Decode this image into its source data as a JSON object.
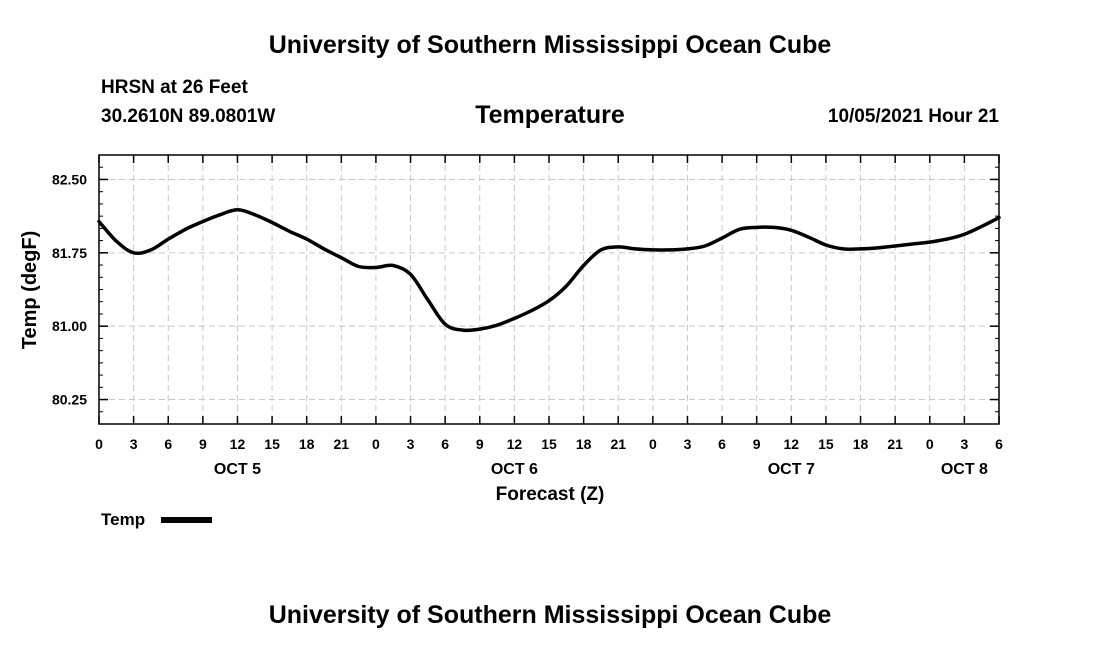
{
  "title_top": "University of Southern Mississippi Ocean Cube",
  "title_bottom": "University of Southern Mississippi Ocean Cube",
  "station": "HRSN at 26 Feet",
  "coords": "30.2610N  89.0801W",
  "timestamp": "10/05/2021 Hour 21",
  "chart_data": {
    "type": "line",
    "title": "Temperature",
    "xlabel": "Forecast (Z)",
    "ylabel": "Temp (degF)",
    "ylim": [
      80.0,
      82.75
    ],
    "xlim": [
      0,
      78
    ],
    "grid": true,
    "y_ticks": [
      {
        "value": 80.25,
        "label": "80.25"
      },
      {
        "value": 81.0,
        "label": "81.00"
      },
      {
        "value": 81.75,
        "label": "81.75"
      },
      {
        "value": 82.5,
        "label": "82.50"
      }
    ],
    "x_ticks": [
      {
        "hour": 0,
        "label": "0"
      },
      {
        "hour": 3,
        "label": "3"
      },
      {
        "hour": 6,
        "label": "6"
      },
      {
        "hour": 9,
        "label": "9"
      },
      {
        "hour": 12,
        "label": "12"
      },
      {
        "hour": 15,
        "label": "15"
      },
      {
        "hour": 18,
        "label": "18"
      },
      {
        "hour": 21,
        "label": "21"
      },
      {
        "hour": 24,
        "label": "0"
      },
      {
        "hour": 27,
        "label": "3"
      },
      {
        "hour": 30,
        "label": "6"
      },
      {
        "hour": 33,
        "label": "9"
      },
      {
        "hour": 36,
        "label": "12"
      },
      {
        "hour": 39,
        "label": "15"
      },
      {
        "hour": 42,
        "label": "18"
      },
      {
        "hour": 45,
        "label": "21"
      },
      {
        "hour": 48,
        "label": "0"
      },
      {
        "hour": 51,
        "label": "3"
      },
      {
        "hour": 54,
        "label": "6"
      },
      {
        "hour": 57,
        "label": "9"
      },
      {
        "hour": 60,
        "label": "12"
      },
      {
        "hour": 63,
        "label": "15"
      },
      {
        "hour": 66,
        "label": "18"
      },
      {
        "hour": 69,
        "label": "21"
      },
      {
        "hour": 72,
        "label": "0"
      },
      {
        "hour": 75,
        "label": "3"
      },
      {
        "hour": 78,
        "label": "6"
      }
    ],
    "day_labels": [
      {
        "hour": 12,
        "label": "OCT 5"
      },
      {
        "hour": 36,
        "label": "OCT 6"
      },
      {
        "hour": 60,
        "label": "OCT 7"
      },
      {
        "hour": 75,
        "label": "OCT 8"
      }
    ],
    "legend": [
      {
        "name": "Temp",
        "color": "#000000"
      }
    ],
    "series": [
      {
        "name": "Temp",
        "x": [
          0,
          1.5,
          3,
          4.5,
          6,
          7.5,
          9,
          10.5,
          12,
          13.5,
          15,
          16.5,
          18,
          19.5,
          21,
          22.5,
          24,
          25.5,
          27,
          28.5,
          30,
          31.5,
          33,
          34.5,
          36,
          37.5,
          39,
          40.5,
          42,
          43.5,
          45,
          46.5,
          48,
          49.5,
          51,
          52.5,
          54,
          55.5,
          57,
          58.5,
          60,
          61.5,
          63,
          64.5,
          66,
          67.5,
          69,
          70.5,
          72,
          73.5,
          75,
          76.5,
          78
        ],
        "values": [
          82.07,
          81.87,
          81.75,
          81.78,
          81.89,
          81.99,
          82.07,
          82.14,
          82.19,
          82.14,
          82.06,
          81.97,
          81.89,
          81.79,
          81.7,
          81.61,
          81.6,
          81.62,
          81.53,
          81.27,
          81.02,
          80.96,
          80.97,
          81.01,
          81.08,
          81.16,
          81.26,
          81.41,
          81.62,
          81.78,
          81.81,
          81.79,
          81.78,
          81.78,
          81.79,
          81.82,
          81.9,
          81.99,
          82.01,
          82.01,
          81.98,
          81.91,
          81.83,
          81.79,
          81.79,
          81.8,
          81.82,
          81.84,
          81.86,
          81.89,
          81.94,
          82.02,
          82.11
        ]
      }
    ]
  }
}
